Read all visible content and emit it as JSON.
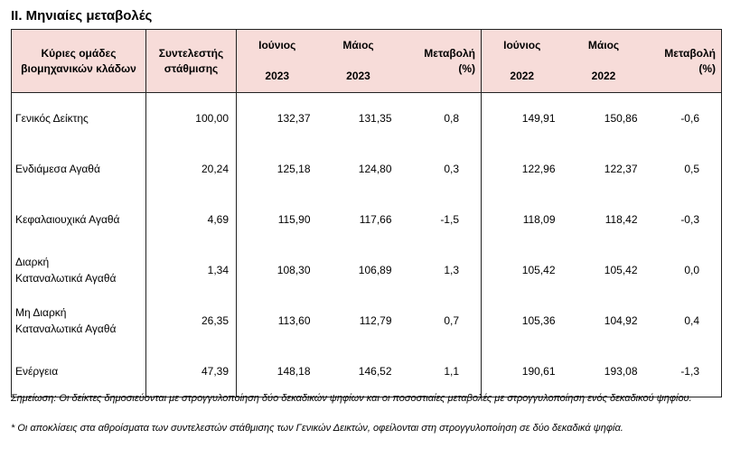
{
  "title": "II. Μηνιαίες μεταβολές",
  "headers": {
    "group": [
      "Κύριες ομάδες",
      "βιομηχανικών κλάδων"
    ],
    "weight": [
      "Συντελεστής",
      "στάθμισης"
    ],
    "jun2023": [
      "Ιούνιος",
      "2023"
    ],
    "may2023": [
      "Μάιος",
      "2023"
    ],
    "change2023": [
      "Μεταβολή",
      "(%)"
    ],
    "jun2022": [
      "Ιούνιος",
      "2022"
    ],
    "may2022": [
      "Μάιος",
      "2022"
    ],
    "change2022": [
      "Μεταβολή",
      "(%)"
    ]
  },
  "rows": [
    {
      "label": [
        "Γενικός Δείκτης"
      ],
      "weight": "100,00",
      "jun2023": "132,37",
      "may2023": "131,35",
      "change2023": "0,8",
      "jun2022": "149,91",
      "may2022": "150,86",
      "change2022": "-0,6"
    },
    {
      "label": [
        "Ενδιάμεσα Αγαθά"
      ],
      "weight": "20,24",
      "jun2023": "125,18",
      "may2023": "124,80",
      "change2023": "0,3",
      "jun2022": "122,96",
      "may2022": "122,37",
      "change2022": "0,5"
    },
    {
      "label": [
        "Κεφαλαιουχικά Αγαθά"
      ],
      "weight": "4,69",
      "jun2023": "115,90",
      "may2023": "117,66",
      "change2023": "-1,5",
      "jun2022": "118,09",
      "may2022": "118,42",
      "change2022": "-0,3"
    },
    {
      "label": [
        "Διαρκή",
        "Καταναλωτικά Αγαθά"
      ],
      "weight": "1,34",
      "jun2023": "108,30",
      "may2023": "106,89",
      "change2023": "1,3",
      "jun2022": "105,42",
      "may2022": "105,42",
      "change2022": "0,0"
    },
    {
      "label": [
        "Μη Διαρκή",
        "Καταναλωτικά Αγαθά"
      ],
      "weight": "26,35",
      "jun2023": "113,60",
      "may2023": "112,79",
      "change2023": "0,7",
      "jun2022": "105,36",
      "may2022": "104,92",
      "change2022": "0,4"
    },
    {
      "label": [
        "Ενέργεια"
      ],
      "weight": "47,39",
      "jun2023": "148,18",
      "may2023": "146,52",
      "change2023": "1,1",
      "jun2022": "190,61",
      "may2022": "193,08",
      "change2022": "-1,3"
    }
  ],
  "notes": {
    "note1": "Σημείωση: Οι δείκτες δημοσιεύονται με στρογγυλοποίηση δύο δεκαδικών ψηφίων και οι ποσοστιαίες μεταβολές με στρογγυλοποίηση ενός δεκαδικού ψηφίου.",
    "note2": "* Οι αποκλίσεις στα αθροίσματα των συντελεστών στάθμισης των Γενικών Δεικτών, οφείλονται στη στρογγυλοποίηση σε δύο δεκαδικά ψηφία."
  }
}
